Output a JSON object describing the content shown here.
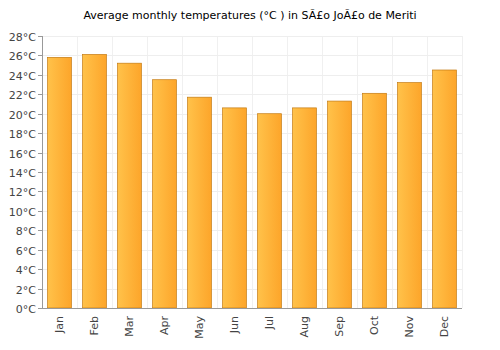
{
  "chart_data": {
    "type": "bar",
    "title": "Average monthly temperatures (°C ) in SÃ£o JoÃ£o de Meriti",
    "categories": [
      "Jan",
      "Feb",
      "Mar",
      "Apr",
      "May",
      "Jun",
      "Jul",
      "Aug",
      "Sep",
      "Oct",
      "Nov",
      "Dec"
    ],
    "values": [
      25.8,
      26.1,
      25.2,
      23.5,
      21.7,
      20.6,
      20.0,
      20.6,
      21.3,
      22.1,
      23.2,
      24.5
    ],
    "color": "#fda52a",
    "ylim": [
      0,
      28
    ],
    "yticks": [
      {
        "value": 0,
        "label": "0°C"
      },
      {
        "value": 2,
        "label": "2°C"
      },
      {
        "value": 4,
        "label": "4°C"
      },
      {
        "value": 6,
        "label": "6°C"
      },
      {
        "value": 8,
        "label": "8°C"
      },
      {
        "value": 10,
        "label": "10°C"
      },
      {
        "value": 12,
        "label": "12°C"
      },
      {
        "value": 14,
        "label": "14°C"
      },
      {
        "value": 16,
        "label": "16°C"
      },
      {
        "value": 18,
        "label": "18°C"
      },
      {
        "value": 20,
        "label": "20°C"
      },
      {
        "value": 22,
        "label": "22°C"
      },
      {
        "value": 24,
        "label": "24°C"
      },
      {
        "value": 26,
        "label": "26°C"
      },
      {
        "value": 28,
        "label": "28°C"
      }
    ],
    "grid": true
  }
}
